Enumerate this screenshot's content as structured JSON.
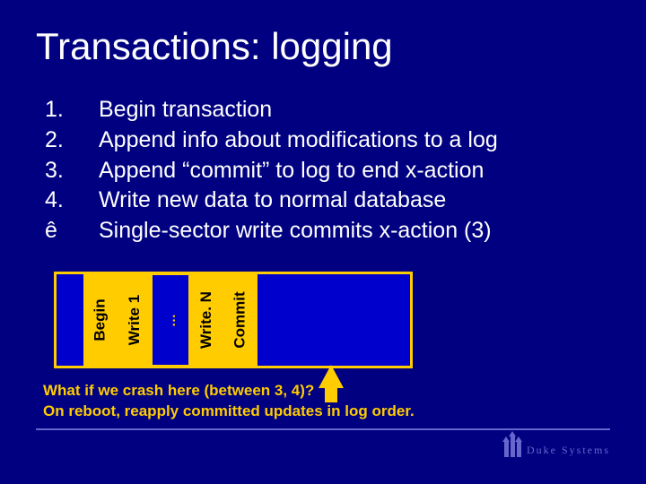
{
  "title": "Transactions: logging",
  "list": {
    "items": [
      {
        "num": "1.",
        "text": "Begin transaction"
      },
      {
        "num": "2.",
        "text": "Append info about modifications to a log"
      },
      {
        "num": "3.",
        "text": "Append “commit” to log to end x-action"
      },
      {
        "num": "4.",
        "text": "Write new data to normal database"
      },
      {
        "num": "ê",
        "text": "Single-sector write commits x-action (3)"
      }
    ]
  },
  "log": {
    "begin": "Begin",
    "write1": "Write 1",
    "dots": "…",
    "writeN": "Write. N",
    "commit": "Commit"
  },
  "caption": {
    "line1": "What if we crash here (between 3, 4)?",
    "line2": "On reboot, reapply committed updates in log order."
  },
  "footer": {
    "brand": "Duke Systems"
  },
  "colors": {
    "background": "#000080",
    "accent": "#ffcc00",
    "text": "#ffffff",
    "logbg": "#0000cc",
    "footer": "#6666cc"
  }
}
